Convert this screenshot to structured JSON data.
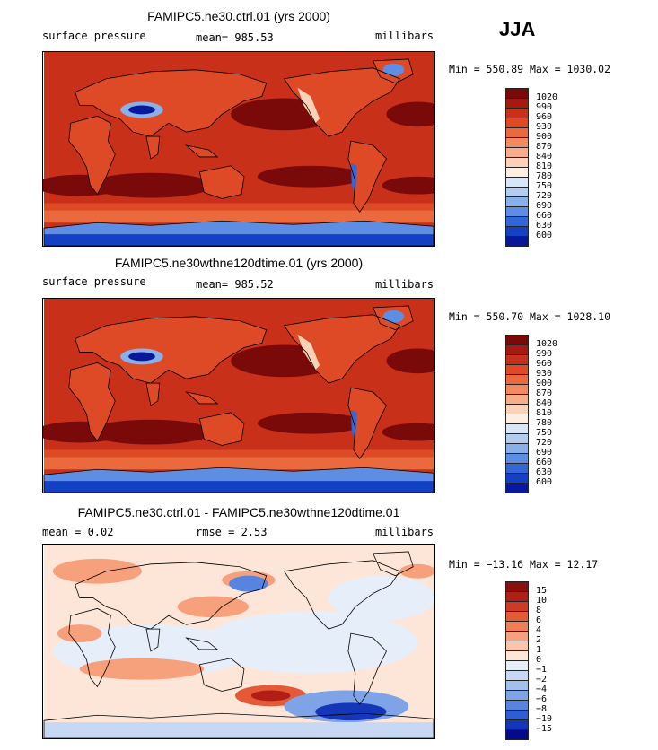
{
  "season": "JJA",
  "panels": [
    {
      "title": "FAMIPC5.ne30.ctrl.01 (yrs 2000)",
      "left_label": "surface pressure",
      "mean_label": "mean= 985.53",
      "units": "millibars",
      "minmax": "Min = 550.89 Max = 1030.02",
      "colorbar_labels": [
        "1020",
        "990",
        "960",
        "930",
        "900",
        "870",
        "840",
        "810",
        "780",
        "750",
        "720",
        "690",
        "660",
        "630",
        "600"
      ]
    },
    {
      "title": "FAMIPC5.ne30wthne120dtime.01 (yrs 2000)",
      "left_label": "surface pressure",
      "mean_label": "mean= 985.52",
      "units": "millibars",
      "minmax": "Min = 550.70 Max = 1028.10",
      "colorbar_labels": [
        "1020",
        "990",
        "960",
        "930",
        "900",
        "870",
        "840",
        "810",
        "780",
        "750",
        "720",
        "690",
        "660",
        "630",
        "600"
      ]
    },
    {
      "title": "FAMIPC5.ne30.ctrl.01 - FAMIPC5.ne30wthne120dtime.01",
      "left_label": "mean =     0.02",
      "mean_label": "rmse =     2.53",
      "units": "millibars",
      "minmax": "Min = −13.16 Max =   12.17",
      "colorbar_labels": [
        "15",
        "10",
        "8",
        "6",
        "4",
        "2",
        "1",
        "0",
        "−1",
        "−2",
        "−4",
        "−6",
        "−8",
        "−10",
        "−15"
      ]
    }
  ],
  "colors": {
    "pressure_scale": [
      "#7a0a0a",
      "#a31a0e",
      "#c8301a",
      "#de4a26",
      "#ea6a3e",
      "#f28a60",
      "#f7ad89",
      "#fbd2b8",
      "#fdeee4",
      "#d8e6f7",
      "#b3cdf0",
      "#8ab0ea",
      "#5d8ee3",
      "#3366d8",
      "#1440c4",
      "#08189a"
    ],
    "diff_scale": [
      "#8a0e0e",
      "#b01e16",
      "#cf3a24",
      "#e45a36",
      "#f07e56",
      "#f6a07c",
      "#fac6ab",
      "#fde6d8",
      "#e6eefa",
      "#c6d8f3",
      "#a2bfee",
      "#7ea3e6",
      "#5684de",
      "#2e5fd0",
      "#1436b8",
      "#050a8c"
    ],
    "land_outline": "#000000"
  }
}
